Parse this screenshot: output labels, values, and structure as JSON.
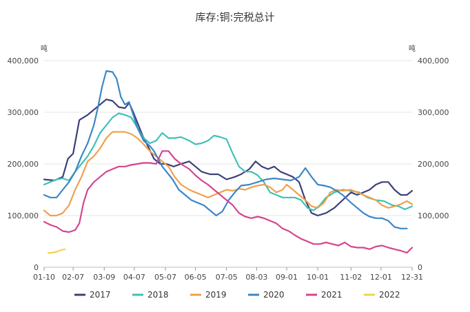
{
  "chart_data": {
    "type": "line",
    "title": "库存:铜:完税总计",
    "y_unit_left": "吨",
    "y_unit_right": "吨",
    "ylim": [
      0,
      400000
    ],
    "y_ticks": [
      0,
      100000,
      200000,
      300000,
      400000
    ],
    "y_tick_labels": [
      "0",
      "100,000",
      "200,000",
      "300,000",
      "400,000"
    ],
    "x_tick_labels": [
      "01-10",
      "02-07",
      "03-09",
      "04-07",
      "05-07",
      "06-05",
      "07-05",
      "08-03",
      "09-01",
      "10-01",
      "11-02",
      "12-01",
      "12-31"
    ],
    "x_domain": [
      10,
      365
    ],
    "x_tick_days": [
      10,
      38,
      68,
      97,
      127,
      156,
      186,
      215,
      244,
      274,
      306,
      335,
      365
    ],
    "legend_position": "bottom",
    "grid": "horizontal",
    "series": [
      {
        "name": "2017",
        "color": "#3b3f7a",
        "points": [
          [
            10,
            170000
          ],
          [
            20,
            168000
          ],
          [
            28,
            175000
          ],
          [
            33,
            210000
          ],
          [
            38,
            220000
          ],
          [
            44,
            285000
          ],
          [
            52,
            295000
          ],
          [
            58,
            305000
          ],
          [
            64,
            315000
          ],
          [
            70,
            325000
          ],
          [
            76,
            322000
          ],
          [
            82,
            310000
          ],
          [
            88,
            308000
          ],
          [
            92,
            318000
          ],
          [
            96,
            300000
          ],
          [
            100,
            280000
          ],
          [
            105,
            255000
          ],
          [
            110,
            235000
          ],
          [
            116,
            210000
          ],
          [
            122,
            200000
          ],
          [
            128,
            200000
          ],
          [
            135,
            195000
          ],
          [
            142,
            200000
          ],
          [
            150,
            205000
          ],
          [
            156,
            195000
          ],
          [
            162,
            185000
          ],
          [
            170,
            180000
          ],
          [
            178,
            180000
          ],
          [
            186,
            170000
          ],
          [
            194,
            175000
          ],
          [
            200,
            180000
          ],
          [
            208,
            190000
          ],
          [
            214,
            205000
          ],
          [
            220,
            195000
          ],
          [
            226,
            190000
          ],
          [
            232,
            195000
          ],
          [
            238,
            185000
          ],
          [
            244,
            180000
          ],
          [
            250,
            175000
          ],
          [
            256,
            165000
          ],
          [
            262,
            130000
          ],
          [
            268,
            105000
          ],
          [
            274,
            100000
          ],
          [
            282,
            105000
          ],
          [
            290,
            115000
          ],
          [
            298,
            130000
          ],
          [
            306,
            145000
          ],
          [
            312,
            140000
          ],
          [
            318,
            145000
          ],
          [
            324,
            150000
          ],
          [
            330,
            160000
          ],
          [
            336,
            165000
          ],
          [
            342,
            165000
          ],
          [
            348,
            150000
          ],
          [
            354,
            140000
          ],
          [
            360,
            140000
          ],
          [
            365,
            148000
          ]
        ]
      },
      {
        "name": "2018",
        "color": "#3ec1b8",
        "points": [
          [
            10,
            160000
          ],
          [
            16,
            165000
          ],
          [
            22,
            170000
          ],
          [
            28,
            172000
          ],
          [
            34,
            168000
          ],
          [
            40,
            185000
          ],
          [
            46,
            200000
          ],
          [
            52,
            215000
          ],
          [
            58,
            235000
          ],
          [
            64,
            260000
          ],
          [
            70,
            275000
          ],
          [
            76,
            290000
          ],
          [
            82,
            298000
          ],
          [
            88,
            295000
          ],
          [
            94,
            290000
          ],
          [
            100,
            270000
          ],
          [
            106,
            250000
          ],
          [
            112,
            240000
          ],
          [
            118,
            245000
          ],
          [
            124,
            260000
          ],
          [
            130,
            250000
          ],
          [
            136,
            250000
          ],
          [
            142,
            252000
          ],
          [
            150,
            245000
          ],
          [
            156,
            238000
          ],
          [
            162,
            240000
          ],
          [
            168,
            245000
          ],
          [
            174,
            255000
          ],
          [
            180,
            252000
          ],
          [
            186,
            248000
          ],
          [
            192,
            220000
          ],
          [
            198,
            195000
          ],
          [
            204,
            185000
          ],
          [
            210,
            185000
          ],
          [
            216,
            178000
          ],
          [
            222,
            165000
          ],
          [
            228,
            145000
          ],
          [
            234,
            140000
          ],
          [
            240,
            135000
          ],
          [
            246,
            135000
          ],
          [
            252,
            135000
          ],
          [
            258,
            130000
          ],
          [
            264,
            115000
          ],
          [
            270,
            110000
          ],
          [
            276,
            120000
          ],
          [
            282,
            135000
          ],
          [
            290,
            145000
          ],
          [
            298,
            150000
          ],
          [
            306,
            148000
          ],
          [
            314,
            145000
          ],
          [
            322,
            135000
          ],
          [
            330,
            130000
          ],
          [
            338,
            128000
          ],
          [
            346,
            120000
          ],
          [
            352,
            118000
          ],
          [
            358,
            112000
          ],
          [
            365,
            118000
          ]
        ]
      },
      {
        "name": "2019",
        "color": "#f0a04b",
        "points": [
          [
            10,
            110000
          ],
          [
            16,
            100000
          ],
          [
            22,
            100000
          ],
          [
            28,
            105000
          ],
          [
            34,
            120000
          ],
          [
            40,
            150000
          ],
          [
            46,
            175000
          ],
          [
            52,
            205000
          ],
          [
            58,
            215000
          ],
          [
            64,
            230000
          ],
          [
            70,
            250000
          ],
          [
            76,
            262000
          ],
          [
            82,
            262000
          ],
          [
            88,
            262000
          ],
          [
            94,
            258000
          ],
          [
            100,
            250000
          ],
          [
            106,
            238000
          ],
          [
            112,
            225000
          ],
          [
            118,
            215000
          ],
          [
            124,
            205000
          ],
          [
            130,
            195000
          ],
          [
            136,
            175000
          ],
          [
            142,
            160000
          ],
          [
            150,
            150000
          ],
          [
            156,
            145000
          ],
          [
            162,
            140000
          ],
          [
            168,
            135000
          ],
          [
            174,
            140000
          ],
          [
            180,
            145000
          ],
          [
            186,
            150000
          ],
          [
            192,
            148000
          ],
          [
            198,
            152000
          ],
          [
            204,
            150000
          ],
          [
            210,
            155000
          ],
          [
            216,
            158000
          ],
          [
            222,
            160000
          ],
          [
            228,
            155000
          ],
          [
            234,
            145000
          ],
          [
            240,
            150000
          ],
          [
            244,
            160000
          ],
          [
            250,
            150000
          ],
          [
            256,
            140000
          ],
          [
            262,
            130000
          ],
          [
            268,
            118000
          ],
          [
            274,
            115000
          ],
          [
            280,
            125000
          ],
          [
            286,
            145000
          ],
          [
            292,
            150000
          ],
          [
            298,
            148000
          ],
          [
            306,
            150000
          ],
          [
            312,
            145000
          ],
          [
            318,
            140000
          ],
          [
            324,
            135000
          ],
          [
            330,
            130000
          ],
          [
            336,
            120000
          ],
          [
            342,
            115000
          ],
          [
            348,
            118000
          ],
          [
            354,
            122000
          ],
          [
            360,
            128000
          ],
          [
            365,
            122000
          ]
        ]
      },
      {
        "name": "2020",
        "color": "#3b86c6",
        "points": [
          [
            10,
            140000
          ],
          [
            16,
            135000
          ],
          [
            22,
            135000
          ],
          [
            28,
            150000
          ],
          [
            34,
            165000
          ],
          [
            40,
            185000
          ],
          [
            46,
            215000
          ],
          [
            52,
            240000
          ],
          [
            58,
            275000
          ],
          [
            62,
            310000
          ],
          [
            66,
            350000
          ],
          [
            70,
            380000
          ],
          [
            76,
            378000
          ],
          [
            80,
            365000
          ],
          [
            84,
            330000
          ],
          [
            88,
            315000
          ],
          [
            92,
            320000
          ],
          [
            96,
            295000
          ],
          [
            100,
            270000
          ],
          [
            106,
            245000
          ],
          [
            112,
            235000
          ],
          [
            116,
            225000
          ],
          [
            120,
            210000
          ],
          [
            124,
            195000
          ],
          [
            128,
            185000
          ],
          [
            134,
            170000
          ],
          [
            140,
            150000
          ],
          [
            146,
            140000
          ],
          [
            152,
            130000
          ],
          [
            158,
            125000
          ],
          [
            164,
            120000
          ],
          [
            170,
            110000
          ],
          [
            176,
            100000
          ],
          [
            182,
            108000
          ],
          [
            188,
            130000
          ],
          [
            194,
            145000
          ],
          [
            200,
            158000
          ],
          [
            208,
            160000
          ],
          [
            216,
            165000
          ],
          [
            224,
            170000
          ],
          [
            232,
            172000
          ],
          [
            240,
            170000
          ],
          [
            248,
            168000
          ],
          [
            256,
            175000
          ],
          [
            262,
            192000
          ],
          [
            268,
            175000
          ],
          [
            274,
            160000
          ],
          [
            280,
            158000
          ],
          [
            286,
            155000
          ],
          [
            292,
            148000
          ],
          [
            298,
            140000
          ],
          [
            306,
            125000
          ],
          [
            312,
            115000
          ],
          [
            318,
            105000
          ],
          [
            324,
            98000
          ],
          [
            330,
            95000
          ],
          [
            336,
            95000
          ],
          [
            342,
            90000
          ],
          [
            348,
            78000
          ],
          [
            354,
            75000
          ],
          [
            360,
            75000
          ]
        ]
      },
      {
        "name": "2021",
        "color": "#d6448f",
        "points": [
          [
            10,
            88000
          ],
          [
            16,
            82000
          ],
          [
            22,
            78000
          ],
          [
            28,
            70000
          ],
          [
            34,
            68000
          ],
          [
            40,
            72000
          ],
          [
            44,
            85000
          ],
          [
            48,
            125000
          ],
          [
            52,
            150000
          ],
          [
            58,
            165000
          ],
          [
            64,
            175000
          ],
          [
            70,
            185000
          ],
          [
            76,
            190000
          ],
          [
            82,
            195000
          ],
          [
            88,
            195000
          ],
          [
            94,
            198000
          ],
          [
            100,
            200000
          ],
          [
            106,
            202000
          ],
          [
            112,
            202000
          ],
          [
            118,
            200000
          ],
          [
            124,
            225000
          ],
          [
            130,
            225000
          ],
          [
            136,
            210000
          ],
          [
            142,
            200000
          ],
          [
            150,
            190000
          ],
          [
            156,
            178000
          ],
          [
            162,
            168000
          ],
          [
            168,
            160000
          ],
          [
            174,
            150000
          ],
          [
            180,
            140000
          ],
          [
            186,
            130000
          ],
          [
            192,
            120000
          ],
          [
            198,
            105000
          ],
          [
            204,
            98000
          ],
          [
            210,
            95000
          ],
          [
            216,
            98000
          ],
          [
            222,
            95000
          ],
          [
            228,
            90000
          ],
          [
            234,
            85000
          ],
          [
            240,
            75000
          ],
          [
            246,
            70000
          ],
          [
            252,
            62000
          ],
          [
            258,
            55000
          ],
          [
            264,
            50000
          ],
          [
            270,
            45000
          ],
          [
            276,
            45000
          ],
          [
            282,
            48000
          ],
          [
            288,
            45000
          ],
          [
            294,
            42000
          ],
          [
            300,
            48000
          ],
          [
            306,
            40000
          ],
          [
            312,
            38000
          ],
          [
            318,
            38000
          ],
          [
            324,
            35000
          ],
          [
            330,
            40000
          ],
          [
            336,
            42000
          ],
          [
            342,
            38000
          ],
          [
            348,
            35000
          ],
          [
            354,
            32000
          ],
          [
            360,
            28000
          ],
          [
            365,
            38000
          ]
        ]
      },
      {
        "name": "2022",
        "color": "#f2d34a",
        "points": [
          [
            14,
            28000
          ],
          [
            18,
            28000
          ],
          [
            22,
            30000
          ],
          [
            26,
            33000
          ],
          [
            30,
            35000
          ]
        ]
      }
    ]
  }
}
